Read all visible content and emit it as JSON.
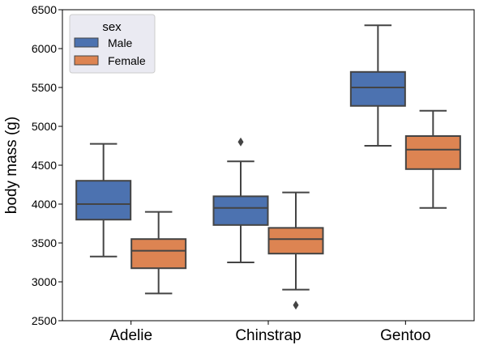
{
  "chart_data": {
    "type": "boxplot",
    "title": "",
    "xlabel": "",
    "ylabel": "body mass (g)",
    "ylim": [
      2500,
      6500
    ],
    "yticks": [
      2500,
      3000,
      3500,
      4000,
      4500,
      5000,
      5500,
      6000,
      6500
    ],
    "categories": [
      "Adelie",
      "Chinstrap",
      "Gentoo"
    ],
    "legend": {
      "title": "sex",
      "placement": "top-left"
    },
    "grid": false,
    "series": [
      {
        "name": "Male",
        "color": "#4C72B0",
        "boxes": [
          {
            "whisker_low": 3325,
            "q1": 3800,
            "median": 4000,
            "q3": 4300,
            "whisker_high": 4775,
            "outliers": []
          },
          {
            "whisker_low": 3250,
            "q1": 3731,
            "median": 3950,
            "q3": 4100,
            "whisker_high": 4550,
            "outliers": [
              4800
            ]
          },
          {
            "whisker_low": 4750,
            "q1": 5263,
            "median": 5500,
            "q3": 5700,
            "whisker_high": 6300,
            "outliers": []
          }
        ]
      },
      {
        "name": "Female",
        "color": "#DD8452",
        "boxes": [
          {
            "whisker_low": 2850,
            "q1": 3175,
            "median": 3400,
            "q3": 3550,
            "whisker_high": 3900,
            "outliers": []
          },
          {
            "whisker_low": 2900,
            "q1": 3363,
            "median": 3550,
            "q3": 3694,
            "whisker_high": 4150,
            "outliers": [
              2700
            ]
          },
          {
            "whisker_low": 3950,
            "q1": 4450,
            "median": 4700,
            "q3": 4875,
            "whisker_high": 5200,
            "outliers": []
          }
        ]
      }
    ]
  }
}
